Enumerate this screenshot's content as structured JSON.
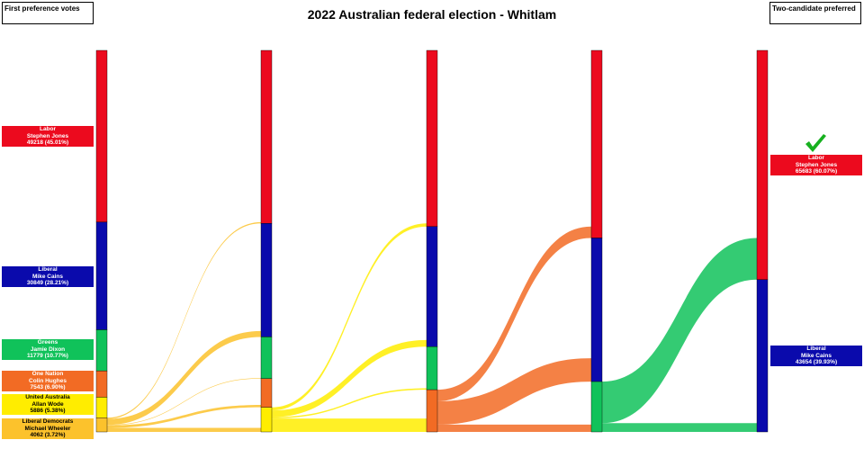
{
  "title": "2022 Australian federal election - Whitlam",
  "left_header": "First preference votes",
  "right_header": "Two-candidate preferred",
  "colors": {
    "Labor": "#ec0a1e",
    "Liberal": "#0a0aac",
    "Greens": "#10c25a",
    "One Nation": "#f26b24",
    "United Australia": "#ffed00",
    "Liberal Democrats": "#fcc22c"
  },
  "candidates": [
    {
      "party": "Labor",
      "name": "Stephen Jones",
      "votes_label": "49218 (45.01%)"
    },
    {
      "party": "Liberal",
      "name": "Mike Cains",
      "votes_label": "30849 (28.21%)"
    },
    {
      "party": "Greens",
      "name": "Jamie Dixon",
      "votes_label": "11779 (10.77%)"
    },
    {
      "party": "One Nation",
      "name": "Colin Hughes",
      "votes_label": "7543 (6.90%)"
    },
    {
      "party": "United Australia",
      "name": "Allan Wode",
      "votes_label": "5886 (5.38%)"
    },
    {
      "party": "Liberal Democrats",
      "name": "Michael Wheeler",
      "votes_label": "4062 (3.72%)"
    }
  ],
  "final": [
    {
      "party": "Labor",
      "name": "Stephen Jones",
      "votes_label": "65683 (60.07%)",
      "winner": true
    },
    {
      "party": "Liberal",
      "name": "Mike Cains",
      "votes_label": "43654 (39.93%)"
    }
  ],
  "stages": [
    {
      "Labor": 49218,
      "Liberal": 30849,
      "Greens": 11779,
      "One Nation": 7543,
      "United Australia": 5886,
      "Liberal Democrats": 4062
    },
    {
      "Labor": 49568,
      "Liberal": 32549,
      "Greens": 11929,
      "One Nation": 8243,
      "United Australia": 7048
    },
    {
      "Labor": 50468,
      "Liberal": 34449,
      "Greens": 12329,
      "One Nation": 12091
    },
    {
      "Labor": 53768,
      "Liberal": 41149,
      "Greens": 14420
    },
    {
      "Labor": 65683,
      "Liberal": 43654
    }
  ],
  "transfers": [
    {
      "from": "Liberal Democrats",
      "to": {
        "Labor": 350,
        "Liberal": 1700,
        "Greens": 150,
        "One Nation": 700,
        "United Australia": 1162
      }
    },
    {
      "from": "United Australia",
      "to": {
        "Labor": 900,
        "Liberal": 1900,
        "Greens": 400,
        "One Nation": 3848
      }
    },
    {
      "from": "One Nation",
      "to": {
        "Labor": 3300,
        "Liberal": 6700,
        "Greens": 2091
      }
    },
    {
      "from": "Greens",
      "to": {
        "Labor": 11915,
        "Liberal": 2505
      }
    }
  ]
}
